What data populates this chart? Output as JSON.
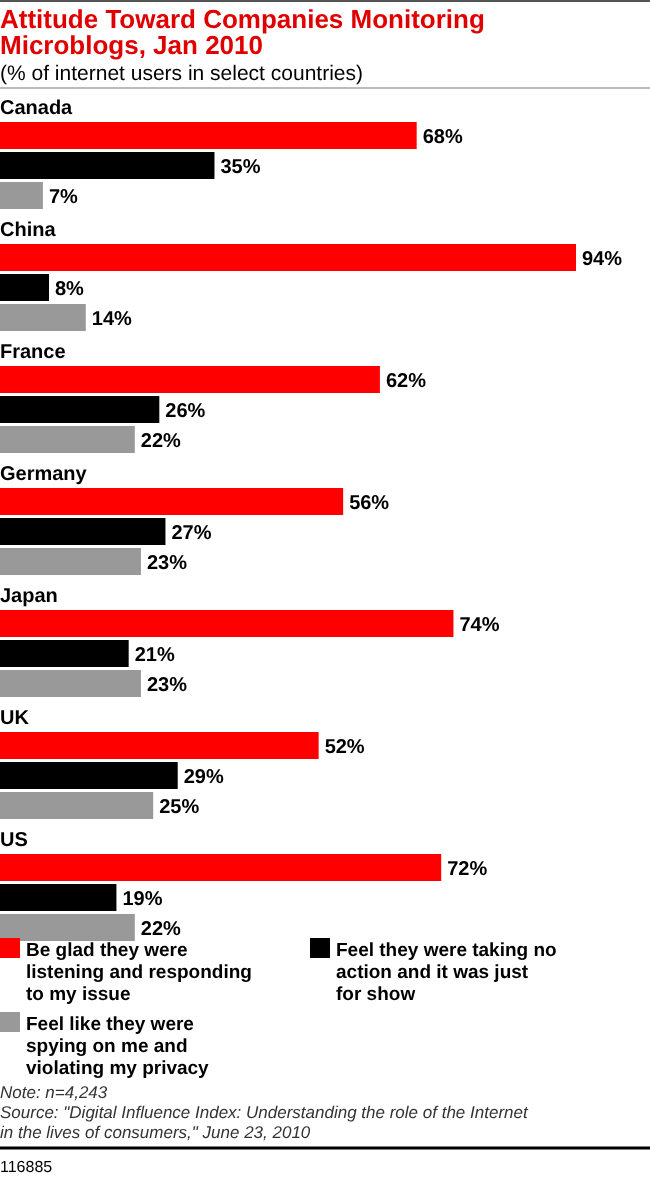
{
  "chart_data": {
    "type": "bar",
    "orientation": "horizontal",
    "title": "Attitude Toward Companies Monitoring Microblogs, Jan 2010",
    "subtitle": "(% of internet users in select countries)",
    "categories": [
      "Canada",
      "China",
      "France",
      "Germany",
      "Japan",
      "UK",
      "US"
    ],
    "series": [
      {
        "name": "Be glad they were listening and responding to my issue",
        "color": "#ff0000",
        "values": [
          68,
          94,
          62,
          56,
          74,
          52,
          72
        ],
        "value_labels": [
          "68%",
          "94%",
          "62%",
          "56%",
          "74%",
          "52%",
          "72%"
        ]
      },
      {
        "name": "Feel they were taking no action and it was just for show",
        "color": "#000000",
        "values": [
          35,
          8,
          26,
          27,
          21,
          29,
          19
        ],
        "value_labels": [
          "35%",
          "8%",
          "26%",
          "27%",
          "21%",
          "29%",
          "19%"
        ]
      },
      {
        "name": "Feel like they were spying on me and violating my privacy",
        "color": "#999999",
        "values": [
          7,
          14,
          22,
          23,
          23,
          25,
          22
        ],
        "value_labels": [
          "7%",
          "14%",
          "22%",
          "23%",
          "23%",
          "25%",
          "22%"
        ]
      }
    ],
    "legend": "bottom",
    "annotations": [
      "Note: n=4,243",
      "Source: \"Digital Influence Index: Understanding the role of the Internet in the lives of consumers,\" June 23, 2010",
      "116885"
    ]
  }
}
